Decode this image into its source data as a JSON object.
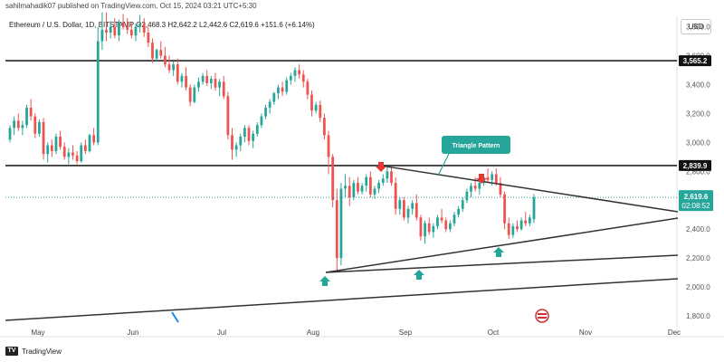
{
  "header": {
    "publisher": "sahilmahadik07 published on TradingView.com, Oct 15, 2024 03:21 UTC+5:30",
    "symbol": "Ethereum / U.S. Dollar, 1D, BITSTAMP",
    "ohlc": "O2,468.3 H2,642.2 L2,442.6 C2,619.6 +151.6 (+6.14%)"
  },
  "currency": "USD",
  "footer": {
    "brand": "TradingView"
  },
  "colors": {
    "up": "#26a69a",
    "down": "#ef5350",
    "level_line": "#222222",
    "trendline": "#333333",
    "callout": "#26a69a",
    "marker_down": "#e53935",
    "marker_up": "#26a69a"
  },
  "chart_data": {
    "type": "candlestick",
    "y_axis": {
      "range": [
        1750,
        3810
      ],
      "ticks": [
        "1,800.0",
        "2,000.0",
        "2,200.0",
        "2,400.0",
        "2,600.0",
        "2,800.0",
        "3,000.0",
        "3,200.0",
        "3,400.0",
        "3,600.0",
        "3,800.0"
      ],
      "tick_values": [
        1800,
        2000,
        2200,
        2400,
        2600,
        2800,
        3000,
        3200,
        3400,
        3600,
        3800
      ],
      "position": "right"
    },
    "x_axis": {
      "labels": [
        "May",
        "Jun",
        "Jul",
        "Aug",
        "Sep",
        "Oct",
        "Nov",
        "Dec"
      ]
    },
    "last_price": {
      "value": 2619.6,
      "label": "2,619.6",
      "countdown": "02:08:52"
    },
    "levels": [
      {
        "value": 3565.2,
        "label": "3,565.2"
      },
      {
        "value": 2839.9,
        "label": "2,839.9"
      }
    ],
    "annotation": "Triangle Pattern",
    "candles": [
      [
        3020,
        3120,
        3000,
        3100
      ],
      [
        3100,
        3180,
        3050,
        3150
      ],
      [
        3150,
        3200,
        3080,
        3100
      ],
      [
        3100,
        3150,
        3050,
        3120
      ],
      [
        3120,
        3260,
        3100,
        3240
      ],
      [
        3240,
        3300,
        3150,
        3180
      ],
      [
        3180,
        3200,
        3030,
        3060
      ],
      [
        3060,
        3160,
        3040,
        3140
      ],
      [
        3140,
        3170,
        2880,
        2920
      ],
      [
        2920,
        3000,
        2860,
        2980
      ],
      [
        2980,
        3020,
        2900,
        2940
      ],
      [
        2940,
        3060,
        2920,
        3040
      ],
      [
        3040,
        3080,
        2950,
        2970
      ],
      [
        2970,
        3000,
        2880,
        2900
      ],
      [
        2900,
        2960,
        2850,
        2930
      ],
      [
        2930,
        2980,
        2880,
        2910
      ],
      [
        2910,
        2940,
        2850,
        2870
      ],
      [
        2870,
        3000,
        2860,
        2980
      ],
      [
        2980,
        3020,
        2920,
        2940
      ],
      [
        2940,
        3060,
        2930,
        3050
      ],
      [
        3050,
        3100,
        2980,
        3000
      ],
      [
        3000,
        3800,
        2980,
        3700
      ],
      [
        3700,
        3900,
        3640,
        3780
      ],
      [
        3780,
        3900,
        3700,
        3760
      ],
      [
        3760,
        3840,
        3720,
        3800
      ],
      [
        3800,
        3860,
        3720,
        3740
      ],
      [
        3740,
        3850,
        3700,
        3830
      ],
      [
        3830,
        3890,
        3780,
        3800
      ],
      [
        3800,
        3860,
        3750,
        3780
      ],
      [
        3780,
        3830,
        3720,
        3740
      ],
      [
        3740,
        3820,
        3700,
        3800
      ],
      [
        3800,
        3880,
        3760,
        3820
      ],
      [
        3820,
        3860,
        3730,
        3760
      ],
      [
        3760,
        3800,
        3660,
        3690
      ],
      [
        3690,
        3720,
        3550,
        3580
      ],
      [
        3580,
        3650,
        3560,
        3640
      ],
      [
        3640,
        3700,
        3580,
        3600
      ],
      [
        3600,
        3660,
        3520,
        3540
      ],
      [
        3540,
        3600,
        3480,
        3500
      ],
      [
        3500,
        3560,
        3460,
        3540
      ],
      [
        3540,
        3580,
        3400,
        3420
      ],
      [
        3420,
        3480,
        3380,
        3460
      ],
      [
        3460,
        3520,
        3360,
        3380
      ],
      [
        3380,
        3400,
        3250,
        3280
      ],
      [
        3280,
        3400,
        3270,
        3380
      ],
      [
        3380,
        3450,
        3350,
        3420
      ],
      [
        3420,
        3480,
        3400,
        3460
      ],
      [
        3460,
        3500,
        3390,
        3410
      ],
      [
        3410,
        3460,
        3370,
        3440
      ],
      [
        3440,
        3480,
        3360,
        3380
      ],
      [
        3380,
        3440,
        3320,
        3420
      ],
      [
        3420,
        3460,
        3300,
        3320
      ],
      [
        3320,
        3350,
        3020,
        3050
      ],
      [
        3050,
        3100,
        2880,
        2950
      ],
      [
        2950,
        3000,
        2900,
        2980
      ],
      [
        2980,
        3060,
        2940,
        3040
      ],
      [
        3040,
        3120,
        3000,
        3100
      ],
      [
        3100,
        3120,
        2980,
        3010
      ],
      [
        3010,
        3080,
        2960,
        3060
      ],
      [
        3060,
        3140,
        3040,
        3120
      ],
      [
        3120,
        3200,
        3100,
        3180
      ],
      [
        3180,
        3260,
        3160,
        3240
      ],
      [
        3240,
        3300,
        3200,
        3280
      ],
      [
        3280,
        3350,
        3260,
        3340
      ],
      [
        3340,
        3400,
        3300,
        3380
      ],
      [
        3380,
        3420,
        3320,
        3350
      ],
      [
        3350,
        3450,
        3330,
        3430
      ],
      [
        3430,
        3480,
        3400,
        3460
      ],
      [
        3460,
        3520,
        3420,
        3500
      ],
      [
        3500,
        3540,
        3440,
        3470
      ],
      [
        3470,
        3500,
        3380,
        3420
      ],
      [
        3420,
        3440,
        3300,
        3330
      ],
      [
        3330,
        3360,
        3180,
        3220
      ],
      [
        3220,
        3280,
        3200,
        3260
      ],
      [
        3260,
        3290,
        3140,
        3170
      ],
      [
        3170,
        3200,
        3020,
        3050
      ],
      [
        3050,
        3080,
        2780,
        2900
      ],
      [
        2900,
        2920,
        2550,
        2600
      ],
      [
        2600,
        2680,
        2100,
        2200
      ],
      [
        2200,
        2720,
        2150,
        2680
      ],
      [
        2680,
        2780,
        2620,
        2700
      ],
      [
        2700,
        2760,
        2560,
        2620
      ],
      [
        2620,
        2740,
        2600,
        2720
      ],
      [
        2720,
        2760,
        2640,
        2660
      ],
      [
        2660,
        2720,
        2640,
        2700
      ],
      [
        2700,
        2780,
        2660,
        2760
      ],
      [
        2760,
        2800,
        2620,
        2640
      ],
      [
        2640,
        2700,
        2610,
        2680
      ],
      [
        2680,
        2740,
        2650,
        2720
      ],
      [
        2720,
        2780,
        2700,
        2750
      ],
      [
        2750,
        2840,
        2720,
        2800
      ],
      [
        2800,
        2830,
        2700,
        2720
      ],
      [
        2720,
        2760,
        2500,
        2540
      ],
      [
        2540,
        2620,
        2500,
        2600
      ],
      [
        2600,
        2620,
        2460,
        2480
      ],
      [
        2480,
        2560,
        2440,
        2540
      ],
      [
        2540,
        2600,
        2500,
        2580
      ],
      [
        2580,
        2640,
        2460,
        2480
      ],
      [
        2480,
        2500,
        2320,
        2350
      ],
      [
        2350,
        2460,
        2300,
        2440
      ],
      [
        2440,
        2480,
        2360,
        2380
      ],
      [
        2380,
        2440,
        2340,
        2420
      ],
      [
        2420,
        2500,
        2400,
        2480
      ],
      [
        2480,
        2540,
        2440,
        2460
      ],
      [
        2460,
        2480,
        2380,
        2400
      ],
      [
        2400,
        2460,
        2380,
        2440
      ],
      [
        2440,
        2520,
        2420,
        2500
      ],
      [
        2500,
        2560,
        2480,
        2540
      ],
      [
        2540,
        2620,
        2520,
        2600
      ],
      [
        2600,
        2680,
        2580,
        2660
      ],
      [
        2660,
        2720,
        2620,
        2700
      ],
      [
        2700,
        2760,
        2660,
        2680
      ],
      [
        2680,
        2740,
        2640,
        2720
      ],
      [
        2720,
        2780,
        2700,
        2760
      ],
      [
        2760,
        2820,
        2720,
        2740
      ],
      [
        2740,
        2800,
        2700,
        2780
      ],
      [
        2780,
        2820,
        2700,
        2720
      ],
      [
        2720,
        2760,
        2620,
        2640
      ],
      [
        2640,
        2660,
        2400,
        2440
      ],
      [
        2440,
        2480,
        2330,
        2360
      ],
      [
        2360,
        2440,
        2340,
        2420
      ],
      [
        2420,
        2460,
        2380,
        2400
      ],
      [
        2400,
        2480,
        2390,
        2460
      ],
      [
        2460,
        2520,
        2420,
        2440
      ],
      [
        2440,
        2500,
        2420,
        2480
      ],
      [
        2468.3,
        2642.2,
        2442.6,
        2619.6
      ]
    ]
  }
}
